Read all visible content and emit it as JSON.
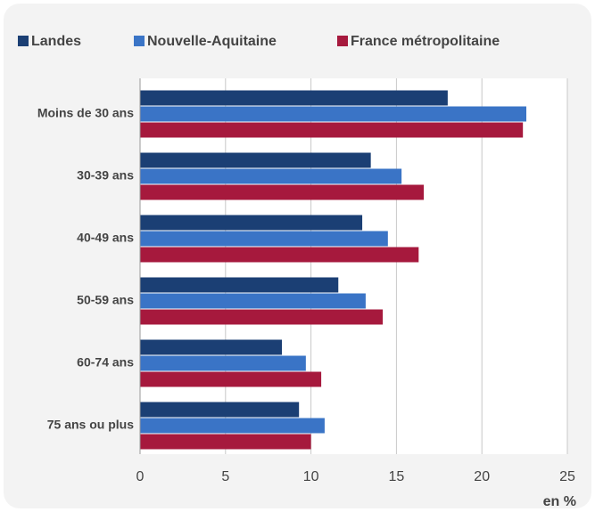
{
  "chart_data": {
    "type": "hbar",
    "categories": [
      "Moins de 30 ans",
      "30-39 ans",
      "40-49 ans",
      "50-59 ans",
      "60-74 ans",
      "75 ans ou plus"
    ],
    "series": [
      {
        "name": "Landes",
        "color": "#1b3f74",
        "values": [
          18.0,
          13.5,
          13.0,
          11.6,
          8.3,
          9.3
        ]
      },
      {
        "name": "Nouvelle-Aquitaine",
        "color": "#3a74c6",
        "values": [
          22.6,
          15.3,
          14.5,
          13.2,
          9.7,
          10.8
        ]
      },
      {
        "name": "France métropolitaine",
        "color": "#a6193d",
        "values": [
          22.4,
          16.6,
          16.3,
          14.2,
          10.6,
          10.0
        ]
      }
    ],
    "xlim": [
      0,
      25
    ],
    "xticks": [
      0,
      5,
      10,
      15,
      20,
      25
    ],
    "xlabel": "en %",
    "grid": true,
    "legend": "top"
  }
}
